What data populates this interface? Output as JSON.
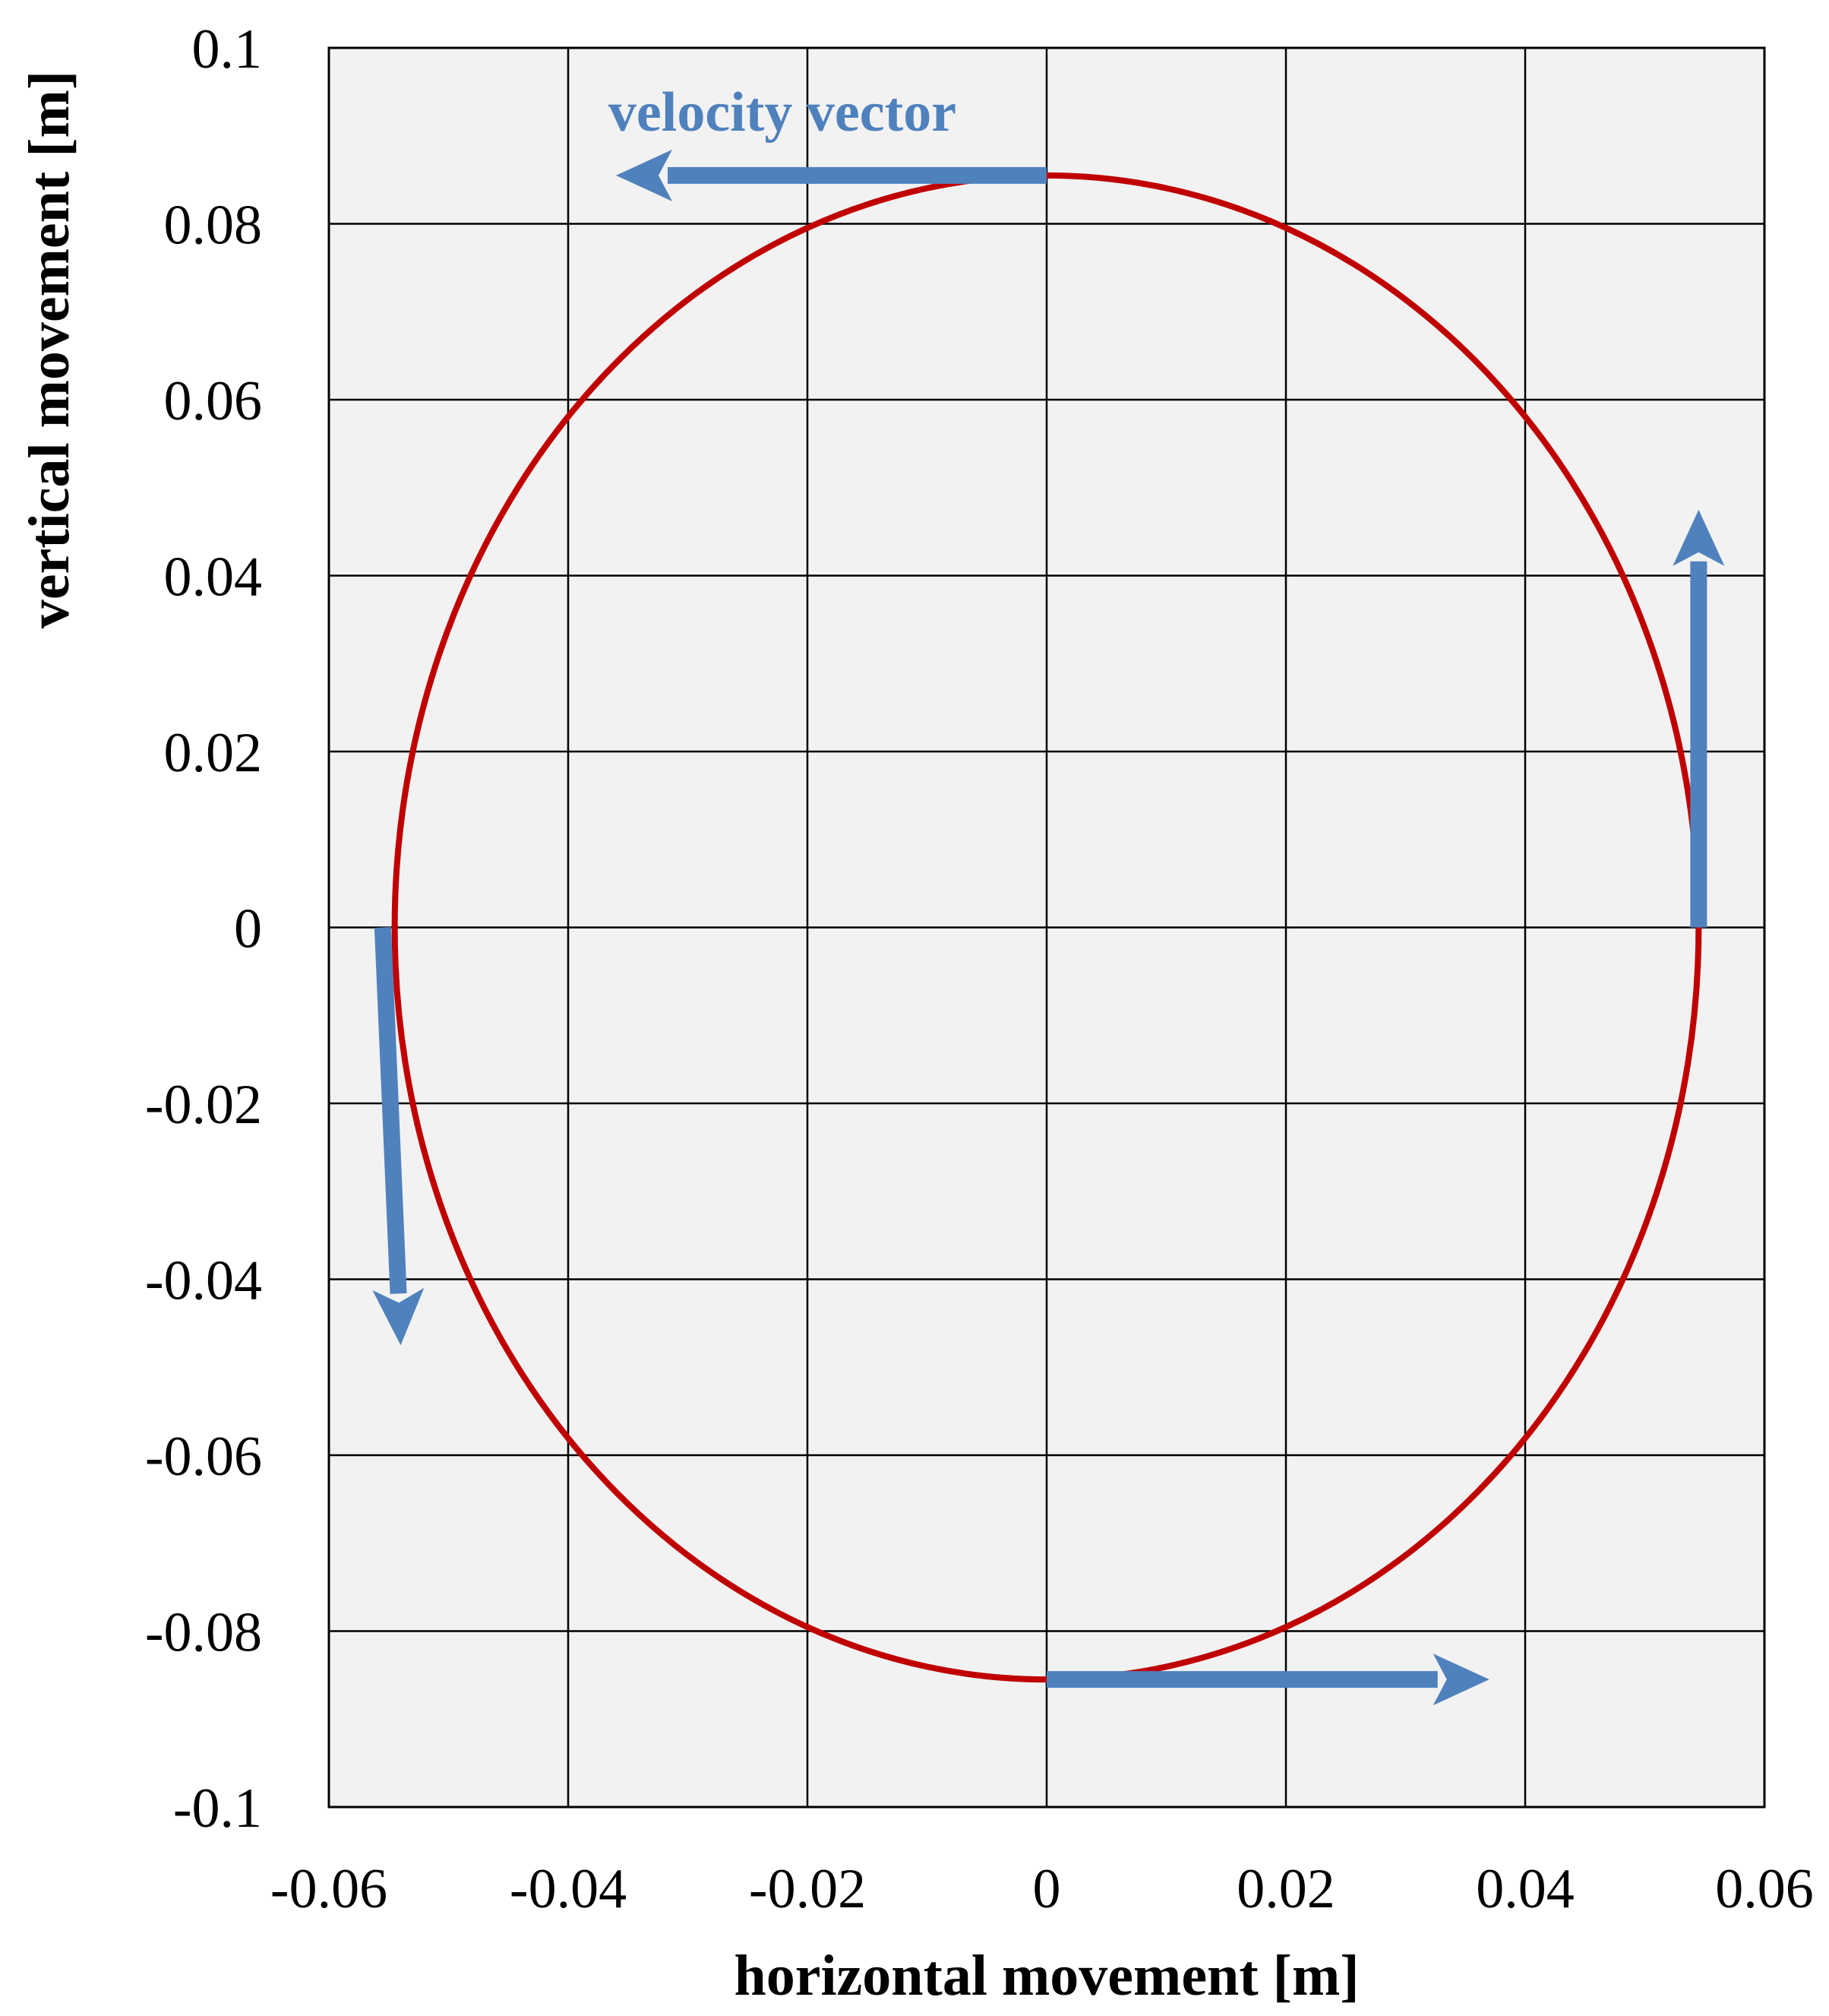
{
  "chart_data": {
    "type": "line",
    "title": "",
    "xlabel": "horizontal movement [m]",
    "ylabel": "vertical movement [m]",
    "xlim": [
      -0.06,
      0.06
    ],
    "ylim": [
      -0.1,
      0.1
    ],
    "x_ticks": [
      -0.06,
      -0.04,
      -0.02,
      0,
      0.02,
      0.04,
      0.06
    ],
    "x_tick_labels": [
      "-0.06",
      "-0.04",
      "-0.02",
      "0",
      "0.02",
      "0.04",
      "0.06"
    ],
    "y_ticks": [
      0.1,
      0.08,
      0.06,
      0.04,
      0.02,
      0,
      -0.02,
      -0.04,
      -0.06,
      -0.08,
      -0.1
    ],
    "y_tick_labels": [
      "0.1",
      "0.08",
      "0.06",
      "0.04",
      "0.02",
      "0",
      "-0.02",
      "-0.04",
      "-0.06",
      "-0.08",
      "-0.1"
    ],
    "grid": true,
    "plot_background": "#f2f2f2",
    "series": [
      {
        "shape": "ellipse",
        "center": [
          0,
          0
        ],
        "semi_axis_x": 0.0545,
        "semi_axis_y": 0.0855,
        "color": "#c00000"
      }
    ],
    "annotations": {
      "label": "velocity vector",
      "color": "#4f81bd",
      "arrows": [
        {
          "from": [
            0,
            0.0855
          ],
          "to": [
            -0.036,
            0.0855
          ]
        },
        {
          "from": [
            0.0545,
            0
          ],
          "to": [
            0.0545,
            0.0475
          ]
        },
        {
          "from": [
            0,
            -0.0855
          ],
          "to": [
            0.037,
            -0.0855
          ]
        },
        {
          "from": [
            -0.0555,
            0
          ],
          "to": [
            -0.054,
            -0.0475
          ]
        }
      ]
    }
  }
}
